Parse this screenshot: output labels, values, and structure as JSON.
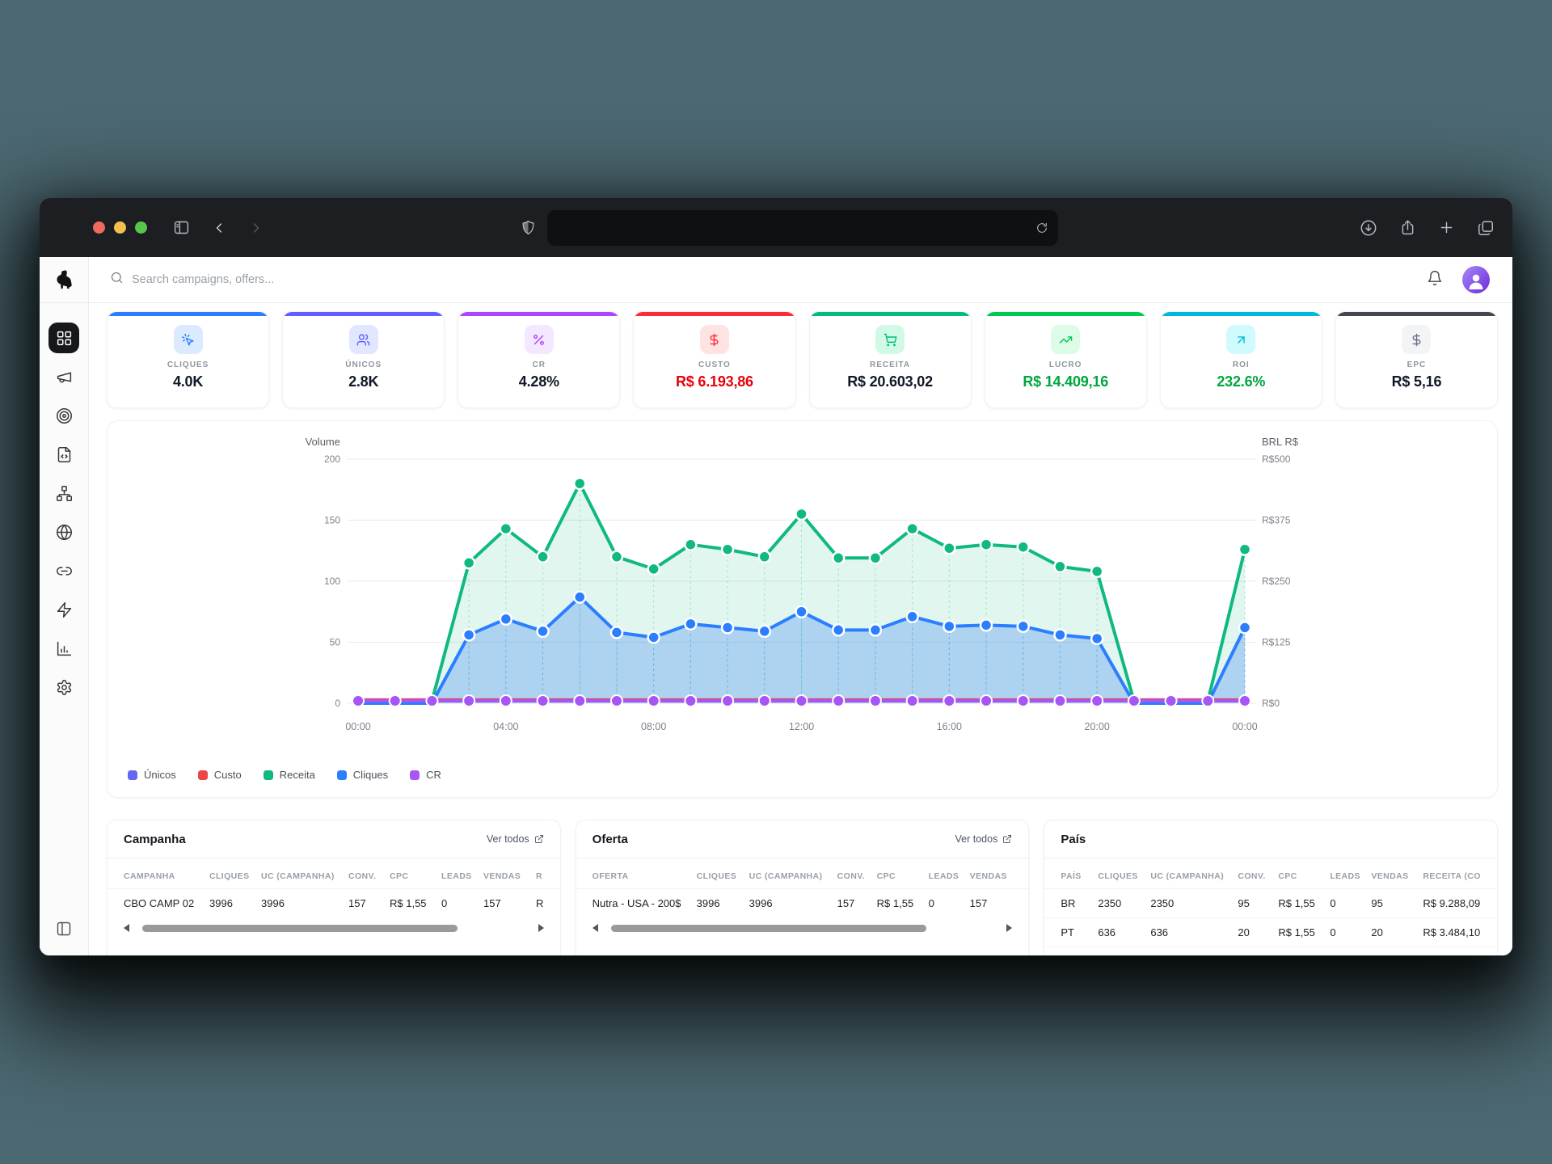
{
  "browser": {
    "search_placeholder": "Search campaigns, offers..."
  },
  "sidebar": {
    "items": [
      {
        "label": "dashboard",
        "icon": "layout-grid-icon",
        "active": true
      },
      {
        "label": "campaigns",
        "icon": "megaphone-icon",
        "active": false
      },
      {
        "label": "offers",
        "icon": "target-icon",
        "active": false
      },
      {
        "label": "landers",
        "icon": "file-code-icon",
        "active": false
      },
      {
        "label": "flows",
        "icon": "network-icon",
        "active": false
      },
      {
        "label": "domains",
        "icon": "globe-icon",
        "active": false
      },
      {
        "label": "links",
        "icon": "link-icon",
        "active": false
      },
      {
        "label": "integrations",
        "icon": "zap-icon",
        "active": false
      },
      {
        "label": "reports",
        "icon": "bar-chart-icon",
        "active": false
      },
      {
        "label": "settings",
        "icon": "gear-icon",
        "active": false
      }
    ]
  },
  "kpis": [
    {
      "label": "CLIQUES",
      "value": "4.0K",
      "accent": "#2b7fff",
      "icon": "mouse-pointer-click-icon",
      "icon_color": "#2b7fff",
      "icon_bg": "#dbeafe",
      "value_color": "#101828"
    },
    {
      "label": "ÚNICOS",
      "value": "2.8K",
      "accent": "#615fff",
      "icon": "users-icon",
      "icon_color": "#615fff",
      "icon_bg": "#e0e7ff",
      "value_color": "#101828"
    },
    {
      "label": "CR",
      "value": "4.28%",
      "accent": "#ad46ff",
      "icon": "percent-icon",
      "icon_color": "#ad46ff",
      "icon_bg": "#f3e8ff",
      "value_color": "#101828"
    },
    {
      "label": "CUSTO",
      "value": "R$ 6.193,86",
      "accent": "#fb2c36",
      "icon": "dollar-icon",
      "icon_color": "#fb2c36",
      "icon_bg": "#ffe2e2",
      "value_color": "#e7000b"
    },
    {
      "label": "RECEITA",
      "value": "R$ 20.603,02",
      "accent": "#00bc7d",
      "icon": "cart-icon",
      "icon_color": "#00bc7d",
      "icon_bg": "#d0fae5",
      "value_color": "#101828"
    },
    {
      "label": "LUCRO",
      "value": "R$ 14.409,16",
      "accent": "#00c951",
      "icon": "trending-up-icon",
      "icon_color": "#00c951",
      "icon_bg": "#dcfce7",
      "value_color": "#00a63e"
    },
    {
      "label": "ROI",
      "value": "232.6%",
      "accent": "#00b8db",
      "icon": "arrow-up-right-icon",
      "icon_color": "#00b8db",
      "icon_bg": "#cffafe",
      "value_color": "#00a63e"
    },
    {
      "label": "EPC",
      "value": "R$ 5,16",
      "accent": "#45474f",
      "icon": "dollar-icon",
      "icon_color": "#6a7282",
      "icon_bg": "#f3f4f6",
      "value_color": "#101828"
    }
  ],
  "chart_data": {
    "type": "area",
    "x": [
      "00:00",
      "01:00",
      "02:00",
      "03:00",
      "04:00",
      "05:00",
      "06:00",
      "07:00",
      "08:00",
      "09:00",
      "10:00",
      "11:00",
      "12:00",
      "13:00",
      "14:00",
      "15:00",
      "16:00",
      "17:00",
      "18:00",
      "19:00",
      "20:00",
      "21:00",
      "22:00",
      "23:00",
      "00:00"
    ],
    "x_axis_ticks": [
      "00:00",
      "04:00",
      "08:00",
      "12:00",
      "16:00",
      "20:00",
      "00:00"
    ],
    "left_axis": {
      "title": "Volume",
      "min": 0,
      "max": 200,
      "ticks": [
        "200",
        "150",
        "100",
        "50",
        "0"
      ]
    },
    "right_axis": {
      "title": "BRL R$",
      "min": 0,
      "max": 500,
      "ticks": [
        "R$500",
        "R$375",
        "R$250",
        "R$125",
        "R$0"
      ]
    },
    "grid": true,
    "legend_position": "bottom-left",
    "series": [
      {
        "name": "Únicos",
        "color": "#6366f1",
        "axis": "left",
        "fill": false,
        "values": [
          0,
          0,
          0,
          56,
          69,
          59,
          87,
          58,
          54,
          65,
          62,
          59,
          75,
          60,
          60,
          71,
          63,
          64,
          63,
          56,
          53,
          0,
          0,
          0,
          62
        ]
      },
      {
        "name": "Custo",
        "color": "#ef4444",
        "axis": "right",
        "fill": false,
        "values": [
          8,
          8,
          8,
          8,
          8,
          8,
          8,
          8,
          8,
          8,
          8,
          8,
          8,
          8,
          8,
          8,
          8,
          8,
          8,
          8,
          8,
          8,
          8,
          8,
          8
        ]
      },
      {
        "name": "Receita",
        "color": "#10b981",
        "axis": "left",
        "fill": true,
        "values": [
          2,
          2,
          2,
          115,
          143,
          120,
          180,
          120,
          110,
          130,
          126,
          120,
          155,
          119,
          119,
          143,
          127,
          130,
          128,
          112,
          108,
          2,
          2,
          2,
          126
        ]
      },
      {
        "name": "Cliques",
        "color": "#2b7fff",
        "axis": "left",
        "fill": true,
        "values": [
          0,
          0,
          0,
          56,
          69,
          59,
          87,
          58,
          54,
          65,
          62,
          59,
          75,
          60,
          60,
          71,
          63,
          64,
          63,
          56,
          53,
          0,
          0,
          0,
          62
        ]
      },
      {
        "name": "CR",
        "color": "#a855f7",
        "axis": "left",
        "fill": false,
        "values": [
          2,
          2,
          2,
          2,
          2,
          2,
          2,
          2,
          2,
          2,
          2,
          2,
          2,
          2,
          2,
          2,
          2,
          2,
          2,
          2,
          2,
          2,
          2,
          2,
          2
        ]
      }
    ]
  },
  "tables": [
    {
      "id": "campanha",
      "title": "Campanha",
      "link_label": "Ver todos",
      "headers": [
        "CAMPANHA",
        "CLIQUES",
        "UC (CAMPANHA)",
        "CONV.",
        "CPC",
        "LEADS",
        "VENDAS",
        "R"
      ],
      "rows": [
        [
          "CBO CAMP 02",
          "3996",
          "3996",
          "157",
          "R$ 1,55",
          "0",
          "157",
          "R"
        ]
      ],
      "scrollbar": true
    },
    {
      "id": "oferta",
      "title": "Oferta",
      "link_label": "Ver todos",
      "headers": [
        "OFERTA",
        "CLIQUES",
        "UC (CAMPANHA)",
        "CONV.",
        "CPC",
        "LEADS",
        "VENDAS"
      ],
      "rows": [
        [
          "Nutra - USA - 200$",
          "3996",
          "3996",
          "157",
          "R$ 1,55",
          "0",
          "157"
        ]
      ],
      "scrollbar": true
    },
    {
      "id": "pais",
      "title": "País",
      "link_label": "",
      "headers": [
        "PAÍS",
        "CLIQUES",
        "UC (CAMPANHA)",
        "CONV.",
        "CPC",
        "LEADS",
        "VENDAS",
        "RECEITA (CO"
      ],
      "rows": [
        [
          "BR",
          "2350",
          "2350",
          "95",
          "R$ 1,55",
          "0",
          "95",
          "R$ 9.288,09"
        ],
        [
          "PT",
          "636",
          "636",
          "20",
          "R$ 1,55",
          "0",
          "20",
          "R$ 3.484,10"
        ]
      ],
      "scrollbar": false
    }
  ]
}
